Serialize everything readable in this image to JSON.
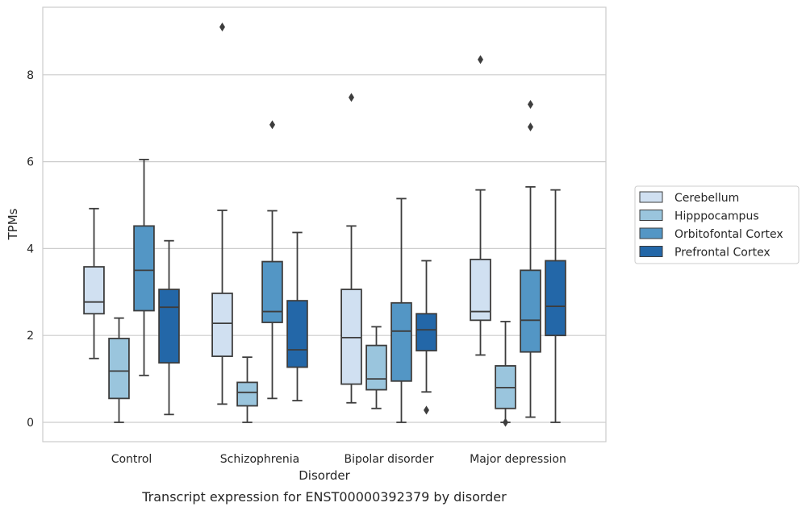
{
  "chart_data": {
    "type": "box",
    "title": "",
    "caption": "Transcript expression for ENST00000392379 by disorder",
    "xlabel": "Disorder",
    "ylabel": "TPMs",
    "ylim": [
      -0.4,
      9.6
    ],
    "yticks": [
      0,
      2,
      4,
      6,
      8
    ],
    "grid": "horizontal",
    "legend_position": "right",
    "categories": [
      "Control",
      "Schizophrenia",
      "Bipolar disorder",
      "Major depression"
    ],
    "series": [
      {
        "name": "Cerebellum",
        "color": "#d0e0f1",
        "boxes": [
          {
            "whisker_low": 1.47,
            "q1": 2.5,
            "median": 2.77,
            "q3": 3.58,
            "whisker_high": 4.92,
            "outliers": []
          },
          {
            "whisker_low": 0.42,
            "q1": 1.52,
            "median": 2.28,
            "q3": 2.97,
            "whisker_high": 4.88,
            "outliers": [
              9.1
            ]
          },
          {
            "whisker_low": 0.45,
            "q1": 0.88,
            "median": 1.95,
            "q3": 3.06,
            "whisker_high": 4.52,
            "outliers": [
              7.48
            ]
          },
          {
            "whisker_low": 1.55,
            "q1": 2.35,
            "median": 2.55,
            "q3": 3.75,
            "whisker_high": 5.35,
            "outliers": [
              8.35
            ]
          }
        ]
      },
      {
        "name": "Hipppocampus",
        "color": "#9ac5dd",
        "boxes": [
          {
            "whisker_low": 0.0,
            "q1": 0.55,
            "median": 1.18,
            "q3": 1.93,
            "whisker_high": 2.4,
            "outliers": []
          },
          {
            "whisker_low": 0.0,
            "q1": 0.38,
            "median": 0.69,
            "q3": 0.92,
            "whisker_high": 1.5,
            "outliers": []
          },
          {
            "whisker_low": 0.32,
            "q1": 0.75,
            "median": 1.0,
            "q3": 1.77,
            "whisker_high": 2.2,
            "outliers": []
          },
          {
            "whisker_low": 0.0,
            "q1": 0.32,
            "median": 0.8,
            "q3": 1.3,
            "whisker_high": 2.32,
            "outliers": [
              0.0
            ]
          }
        ]
      },
      {
        "name": "Orbitofontal Cortex",
        "color": "#5396c5",
        "boxes": [
          {
            "whisker_low": 1.08,
            "q1": 2.57,
            "median": 3.5,
            "q3": 4.52,
            "whisker_high": 6.05,
            "outliers": []
          },
          {
            "whisker_low": 0.55,
            "q1": 2.3,
            "median": 2.55,
            "q3": 3.7,
            "whisker_high": 4.87,
            "outliers": [
              6.85
            ]
          },
          {
            "whisker_low": 0.0,
            "q1": 0.95,
            "median": 2.1,
            "q3": 2.75,
            "whisker_high": 5.15,
            "outliers": []
          },
          {
            "whisker_low": 0.12,
            "q1": 1.62,
            "median": 2.35,
            "q3": 3.5,
            "whisker_high": 5.42,
            "outliers": [
              7.32,
              6.8
            ]
          }
        ]
      },
      {
        "name": "Prefrontal Cortex",
        "color": "#2367a8",
        "boxes": [
          {
            "whisker_low": 0.18,
            "q1": 1.37,
            "median": 2.65,
            "q3": 3.06,
            "whisker_high": 4.18,
            "outliers": []
          },
          {
            "whisker_low": 0.5,
            "q1": 1.27,
            "median": 1.67,
            "q3": 2.8,
            "whisker_high": 4.37,
            "outliers": []
          },
          {
            "whisker_low": 0.7,
            "q1": 1.65,
            "median": 2.13,
            "q3": 2.5,
            "whisker_high": 3.72,
            "outliers": [
              0.28
            ]
          },
          {
            "whisker_low": 0.0,
            "q1": 2.0,
            "median": 2.67,
            "q3": 3.72,
            "whisker_high": 5.35,
            "outliers": []
          }
        ]
      }
    ]
  },
  "colors": {
    "edge": "#3d3d3d",
    "grid": "#cccccc",
    "frame": "#cccccc"
  }
}
